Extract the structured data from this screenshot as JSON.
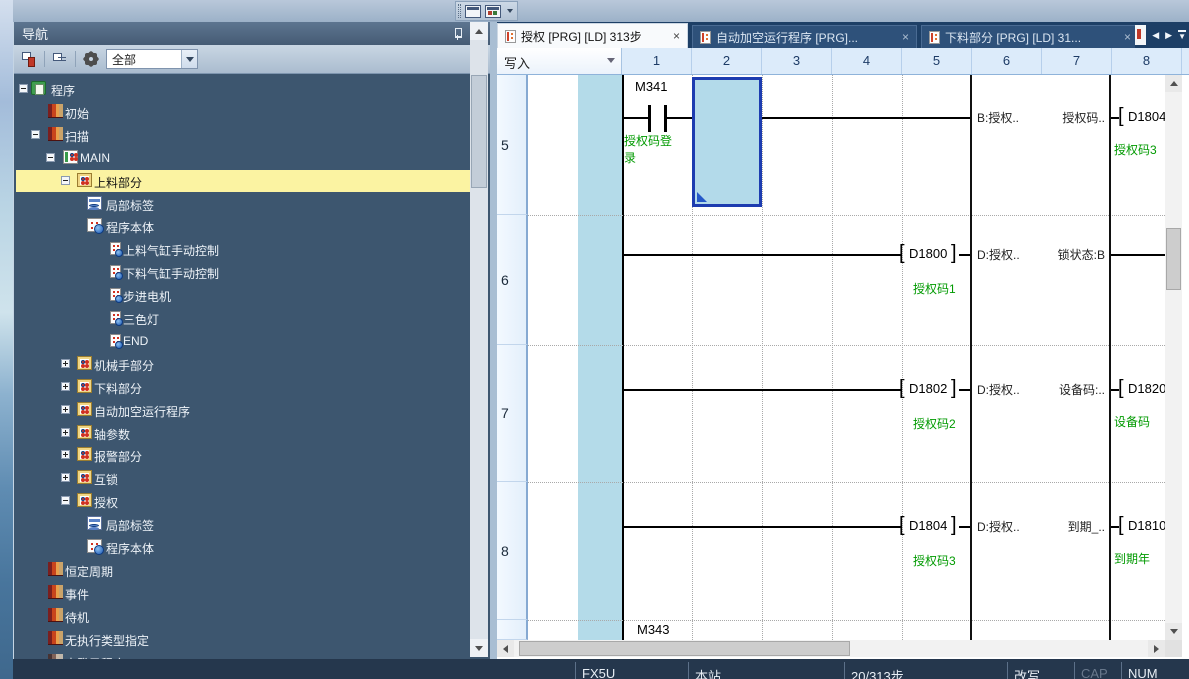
{
  "mini_toolbar": {
    "icons": [
      "watch-window-icon",
      "monitor-window-icon"
    ],
    "overflow": "chevron-down"
  },
  "navigation": {
    "title": "导航",
    "toolbar": {
      "buttons": [
        "tree-display-module",
        "tree-display-all",
        "settings-gear"
      ],
      "filter_value": "全部"
    },
    "tree": [
      {
        "label": "程序",
        "level": 0,
        "expander": "minus",
        "icon": "pfolder",
        "badge": false
      },
      {
        "label": "初始",
        "level": 1,
        "expander": null,
        "icon": "book",
        "badge": false
      },
      {
        "label": "扫描",
        "level": 1,
        "expander": "minus",
        "icon": "book",
        "badge": false
      },
      {
        "label": "MAIN",
        "level": 2,
        "expander": "minus",
        "icon": "main",
        "badge": true
      },
      {
        "label": "上料部分",
        "level": 3,
        "expander": "minus",
        "icon": "part",
        "badge": true,
        "selected": true
      },
      {
        "label": "局部标签",
        "level": 4,
        "expander": null,
        "icon": "tbl",
        "badge": true
      },
      {
        "label": "程序本体",
        "level": 4,
        "expander": null,
        "icon": "body",
        "badge": true
      },
      {
        "label": "上料气缸手动控制",
        "level": 5,
        "expander": null,
        "icon": "page",
        "badge": true
      },
      {
        "label": "下料气缸手动控制",
        "level": 5,
        "expander": null,
        "icon": "page",
        "badge": true
      },
      {
        "label": "步进电机",
        "level": 5,
        "expander": null,
        "icon": "page",
        "badge": true
      },
      {
        "label": "三色灯",
        "level": 5,
        "expander": null,
        "icon": "page",
        "badge": true
      },
      {
        "label": "END",
        "level": 5,
        "expander": null,
        "icon": "page",
        "badge": true
      },
      {
        "label": "机械手部分",
        "level": 3,
        "expander": "plus",
        "icon": "part",
        "badge": true
      },
      {
        "label": "下料部分",
        "level": 3,
        "expander": "plus",
        "icon": "part",
        "badge": true
      },
      {
        "label": "自动加空运行程序",
        "level": 3,
        "expander": "plus",
        "icon": "part",
        "badge": true
      },
      {
        "label": "轴参数",
        "level": 3,
        "expander": "plus",
        "icon": "part",
        "badge": true
      },
      {
        "label": "报警部分",
        "level": 3,
        "expander": "plus",
        "icon": "part",
        "badge": true
      },
      {
        "label": "互锁",
        "level": 3,
        "expander": "plus",
        "icon": "part",
        "badge": true
      },
      {
        "label": "授权",
        "level": 3,
        "expander": "minus",
        "icon": "part",
        "badge": true
      },
      {
        "label": "局部标签",
        "level": 4,
        "expander": null,
        "icon": "tbl",
        "badge": true
      },
      {
        "label": "程序本体",
        "level": 4,
        "expander": null,
        "icon": "body",
        "badge": true
      },
      {
        "label": "恒定周期",
        "level": 1,
        "expander": null,
        "icon": "book",
        "badge": false
      },
      {
        "label": "事件",
        "level": 1,
        "expander": null,
        "icon": "book",
        "badge": false
      },
      {
        "label": "待机",
        "level": 1,
        "expander": null,
        "icon": "book",
        "badge": false
      },
      {
        "label": "无执行类型指定",
        "level": 1,
        "expander": null,
        "icon": "book",
        "badge": false
      },
      {
        "label": "未登录程序",
        "level": 1,
        "expander": null,
        "icon": "bookgray",
        "badge": false
      }
    ]
  },
  "editor": {
    "tabs": [
      {
        "label": "授权 [PRG] [LD] 313步",
        "close": "×",
        "active": true
      },
      {
        "label": "自动加空运行程序 [PRG]...",
        "close": "×",
        "active": false
      },
      {
        "label": "下料部分 [PRG] [LD] 31...",
        "close": "×",
        "active": false
      }
    ],
    "mode": "写入",
    "columns": [
      "1",
      "2",
      "3",
      "4",
      "5",
      "6",
      "7",
      "8"
    ],
    "rows": [
      {
        "num": "5",
        "contact": {
          "device": "M341",
          "comment": "授权码登录"
        },
        "pin_in": "B:授权..",
        "pin_out": "授权码..",
        "output": {
          "device": "D1804",
          "comment": "授权码3"
        }
      },
      {
        "num": "6",
        "source": {
          "device": "D1800",
          "comment": "授权码1"
        },
        "pin_in": "D:授权..",
        "pin_out": "锁状态:B",
        "output": {
          "line": true
        }
      },
      {
        "num": "7",
        "source": {
          "device": "D1802",
          "comment": "授权码2"
        },
        "pin_in": "D:授权..",
        "pin_out": "设备码:..",
        "output": {
          "device": "D1820",
          "comment": "设备码"
        }
      },
      {
        "num": "8",
        "source": {
          "device": "D1804",
          "comment": "授权码3"
        },
        "pin_in": "D:授权..",
        "pin_out": "到期_..",
        "output": {
          "device": "D1810",
          "comment": "到期年"
        }
      }
    ],
    "overflow_device": "M343"
  },
  "status_bar": {
    "items": [
      "FX5U",
      "本站",
      "20/313步",
      "改写",
      "CAP",
      "NUM"
    ]
  }
}
